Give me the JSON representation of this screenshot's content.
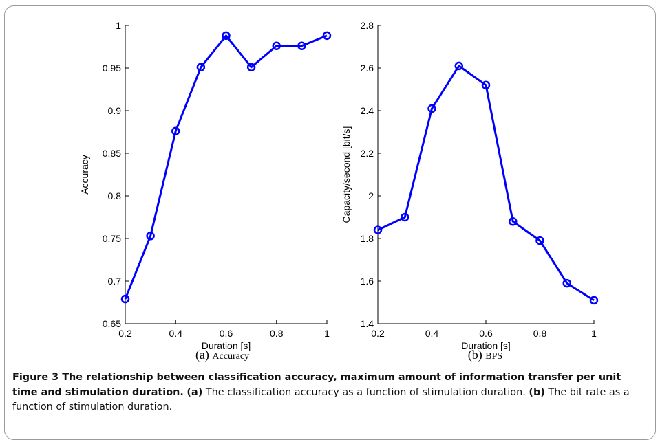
{
  "chart_data": [
    {
      "type": "line",
      "panel_label": "(a)",
      "panel_title": "Accuracy",
      "xlabel": "Duration [s]",
      "ylabel": "Accuracy",
      "xlim": [
        0.2,
        1
      ],
      "ylim": [
        0.65,
        1
      ],
      "xticks": [
        0.2,
        0.4,
        0.6,
        0.8,
        1
      ],
      "xtick_labels": [
        "0.2",
        "0.4",
        "0.6",
        "0.8",
        "1"
      ],
      "yticks": [
        0.65,
        0.7,
        0.75,
        0.8,
        0.85,
        0.9,
        0.95,
        1
      ],
      "ytick_labels": [
        "0.65",
        "0.7",
        "0.75",
        "0.8",
        "0.85",
        "0.9",
        "0.95",
        "1"
      ],
      "grid": false,
      "series": [
        {
          "color": "#0000ff",
          "marker": "circle",
          "x": [
            0.2,
            0.3,
            0.4,
            0.5,
            0.6,
            0.7,
            0.8,
            0.9,
            1.0
          ],
          "y": [
            0.679,
            0.753,
            0.876,
            0.951,
            0.988,
            0.951,
            0.976,
            0.976,
            0.988
          ]
        }
      ]
    },
    {
      "type": "line",
      "panel_label": "(b)",
      "panel_title": "BPS",
      "xlabel": "Duration [s]",
      "ylabel": "Capacity/second [bit/s]",
      "xlim": [
        0.2,
        1
      ],
      "ylim": [
        1.4,
        2.8
      ],
      "xticks": [
        0.2,
        0.4,
        0.6,
        0.8,
        1
      ],
      "xtick_labels": [
        "0.2",
        "0.4",
        "0.6",
        "0.8",
        "1"
      ],
      "yticks": [
        1.4,
        1.6,
        1.8,
        2.0,
        2.2,
        2.4,
        2.6,
        2.8
      ],
      "ytick_labels": [
        "1.4",
        "1.6",
        "1.8",
        "2",
        "2.2",
        "2.4",
        "2.6",
        "2.8"
      ],
      "grid": false,
      "series": [
        {
          "color": "#0000ff",
          "marker": "circle",
          "x": [
            0.2,
            0.3,
            0.4,
            0.5,
            0.6,
            0.7,
            0.8,
            0.9,
            1.0
          ],
          "y": [
            1.84,
            1.9,
            2.41,
            2.61,
            2.52,
            1.88,
            1.79,
            1.59,
            1.51
          ]
        }
      ]
    }
  ],
  "caption": {
    "title": "Figure 3 The relationship between classification accuracy, maximum amount of information transfer per unit time and stimulation duration.",
    "part_a_label": "(a)",
    "part_a_text": " The classification accuracy as a function of stimulation duration.",
    "part_b_label": "(b)",
    "part_b_text": " The bit rate as a function of stimulation duration."
  }
}
